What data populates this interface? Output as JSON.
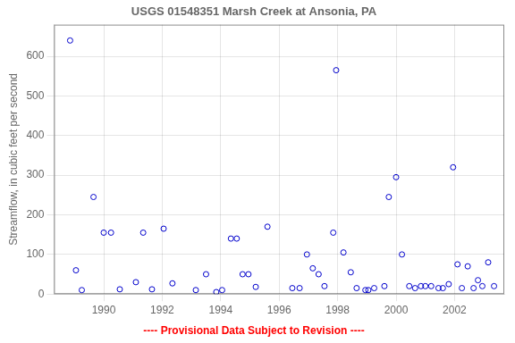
{
  "chart_data": {
    "type": "scatter",
    "title": "USGS 01548351 Marsh Creek at Ansonia, PA",
    "ylabel": "Streamflow, in cubic feet per second",
    "annotations": [
      {
        "text": "---- Provisional Data Subject to Revision ----",
        "color": "#ff0000"
      }
    ],
    "color": "#0000cc",
    "marker": "circle",
    "grid": true,
    "xlim": [
      1988.3,
      2003.7
    ],
    "ylim": [
      0,
      680
    ],
    "xticks": [
      1990,
      1992,
      1994,
      1996,
      1998,
      2000,
      2002
    ],
    "yticks": [
      0,
      100,
      200,
      300,
      400,
      500,
      600
    ],
    "x": [
      1988.85,
      1989.05,
      1989.25,
      1989.65,
      1990.0,
      1990.25,
      1990.55,
      1991.1,
      1991.35,
      1991.65,
      1992.05,
      1992.35,
      1993.15,
      1993.5,
      1993.85,
      1994.05,
      1994.35,
      1994.55,
      1994.75,
      1994.95,
      1995.2,
      1995.6,
      1996.45,
      1996.7,
      1996.95,
      1997.15,
      1997.35,
      1997.55,
      1997.85,
      1997.95,
      1998.2,
      1998.45,
      1998.65,
      1998.95,
      1999.05,
      1999.25,
      1999.6,
      1999.75,
      2000.0,
      2000.2,
      2000.45,
      2000.65,
      2000.85,
      2001.0,
      2001.2,
      2001.45,
      2001.6,
      2001.8,
      2001.95,
      2002.1,
      2002.25,
      2002.45,
      2002.65,
      2002.8,
      2002.95,
      2003.15,
      2003.35
    ],
    "values": [
      640,
      60,
      10,
      245,
      155,
      155,
      12,
      30,
      155,
      12,
      165,
      27,
      10,
      50,
      5,
      10,
      140,
      140,
      50,
      50,
      18,
      170,
      15,
      15,
      100,
      65,
      50,
      20,
      155,
      565,
      105,
      55,
      15,
      10,
      10,
      15,
      20,
      245,
      295,
      100,
      20,
      15,
      20,
      20,
      20,
      15,
      15,
      25,
      320,
      75,
      15,
      70,
      15,
      35,
      20,
      80,
      20
    ]
  }
}
